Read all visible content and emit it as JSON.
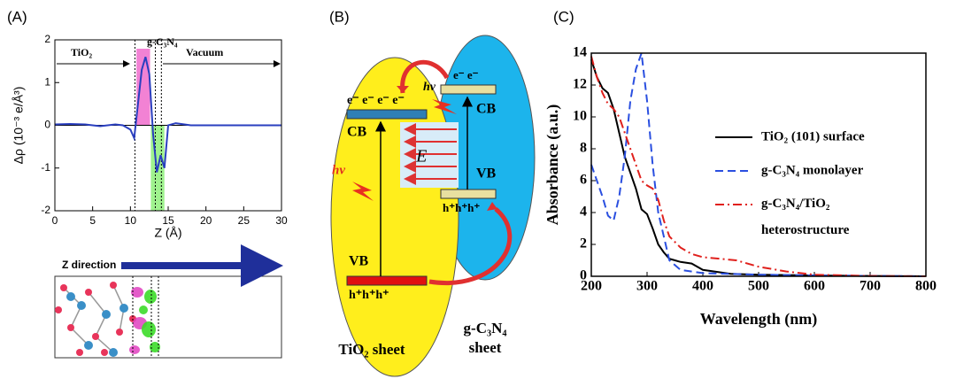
{
  "panels": [
    "(A)",
    "(B)",
    "(C)"
  ],
  "chart_data": [
    {
      "type": "line",
      "xlabel": "Z (Å)",
      "ylabel": "Δρ (10⁻³ e/Å³)",
      "xlim": [
        0,
        30
      ],
      "xticks": [
        0,
        5,
        10,
        15,
        20,
        25,
        30
      ],
      "ylim": [
        -2,
        2
      ],
      "yticks": [
        -2,
        -1,
        0,
        1,
        2
      ],
      "annotations": [
        "TiO₂",
        "g-C₃N₄",
        "Vacuum",
        "Z direction"
      ],
      "regions": [
        {
          "from": 10.8,
          "to": 12.6,
          "color": "#f06ccc"
        },
        {
          "from": 12.7,
          "to": 14.5,
          "color": "#8ef07a"
        }
      ],
      "vlines": [
        10.6,
        13.3,
        14.1
      ],
      "series": [
        {
          "color": "#2a3fbf",
          "style": "solid",
          "x": [
            0,
            2,
            4,
            6,
            8,
            9,
            10,
            10.5,
            11,
            11.5,
            12,
            12.5,
            13,
            13.5,
            14,
            14.5,
            15,
            16,
            18,
            20,
            25,
            30
          ],
          "values": [
            0.02,
            0.03,
            0.02,
            -0.02,
            0.02,
            0,
            -0.1,
            -0.3,
            0.5,
            1.3,
            1.6,
            1.2,
            -0.2,
            -1.1,
            -0.7,
            -1.0,
            0,
            0.05,
            0,
            0,
            0,
            0
          ]
        }
      ]
    },
    {
      "type": "line",
      "xlabel": "Wavelength (nm)",
      "ylabel": "Absorbance (a.u.)",
      "xlim": [
        200,
        800
      ],
      "xticks": [
        200,
        300,
        400,
        500,
        600,
        700,
        800
      ],
      "ylim": [
        0,
        14
      ],
      "yticks": [
        0,
        2,
        4,
        6,
        8,
        10,
        12,
        14
      ],
      "series": [
        {
          "name": "TiO₂ (101) surface",
          "color": "#000000",
          "style": "solid",
          "x": [
            200,
            210,
            220,
            230,
            240,
            250,
            260,
            270,
            280,
            290,
            300,
            310,
            320,
            330,
            340,
            350,
            360,
            380,
            400,
            450,
            500,
            600,
            700,
            800
          ],
          "values": [
            13.6,
            12.5,
            11.8,
            11.5,
            10.5,
            9,
            7.5,
            6.5,
            5.5,
            4.2,
            3.9,
            3,
            2,
            1.5,
            1.1,
            1,
            0.9,
            0.8,
            0.4,
            0.15,
            0.1,
            0.05,
            0.02,
            0
          ]
        },
        {
          "name": "g-C₃N₄ monolayer",
          "color": "#2a4fe0",
          "style": "dashed",
          "x": [
            200,
            210,
            220,
            230,
            240,
            250,
            260,
            270,
            280,
            290,
            300,
            310,
            320,
            330,
            340,
            360,
            400,
            500,
            600,
            800
          ],
          "values": [
            7,
            6,
            5,
            3.8,
            3.5,
            5,
            7.5,
            11,
            13,
            14,
            11,
            7,
            4,
            2.5,
            1,
            0.4,
            0.2,
            0.1,
            0.05,
            0
          ]
        },
        {
          "name": "g-C₃N₄/TiO₂ heterostructure",
          "color": "#e0201c",
          "style": "dashdot",
          "x": [
            200,
            210,
            220,
            230,
            240,
            250,
            260,
            270,
            280,
            290,
            300,
            310,
            320,
            330,
            340,
            360,
            380,
            400,
            430,
            460,
            500,
            550,
            600,
            700,
            800
          ],
          "values": [
            13.8,
            12.5,
            11.5,
            10.8,
            10.5,
            10,
            9,
            8,
            7,
            6,
            5.7,
            5.5,
            4.8,
            3.5,
            2.5,
            1.8,
            1.4,
            1.2,
            1.1,
            1.0,
            0.6,
            0.3,
            0.1,
            0.02,
            0
          ]
        }
      ]
    }
  ],
  "diagram": {
    "tio2": {
      "electrons": "e⁻ e⁻ e⁻ e⁻",
      "cb": "CB",
      "hv": "hν",
      "vb": "VB",
      "holes": "h⁺h⁺h⁺",
      "label": "TiO₂ sheet"
    },
    "field": "E⃗",
    "gcn": {
      "hv": "hν",
      "electrons": "e⁻ e⁻",
      "cb": "CB",
      "vb": "VB",
      "holes": "h⁺h⁺h⁺",
      "label": "g-C₃N₄ sheet"
    }
  }
}
